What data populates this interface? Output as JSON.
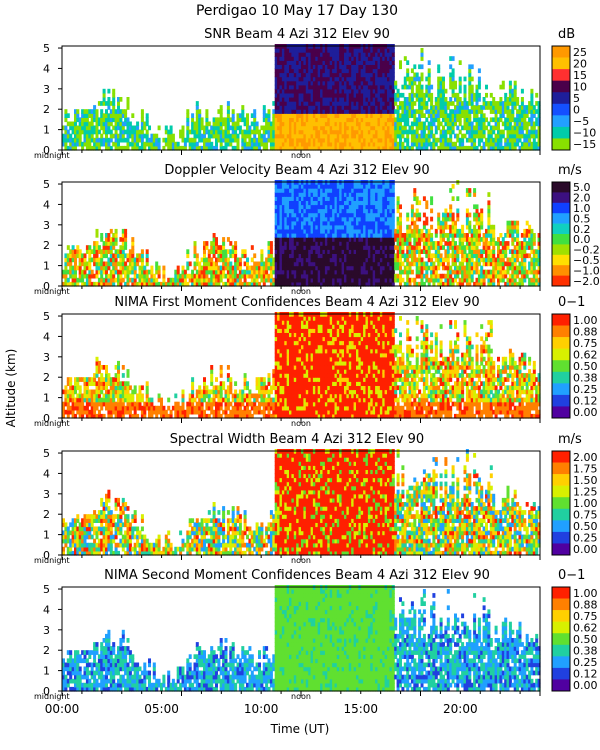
{
  "figure": {
    "title": "Perdigao  10 May 17 Day 130",
    "ylabel": "Altitude (km)",
    "xlabel": "Time (UT)",
    "xticks": [
      "00:00",
      "05:00",
      "10:00",
      "15:00",
      "20:00"
    ],
    "midnight_label": "midnight",
    "noon_label": "noon"
  },
  "chart_data": [
    {
      "type": "heatmap",
      "title": "SNR Beam 4 Azi 312 Elev 90",
      "unit": "dB",
      "yticks": [
        0,
        1,
        2,
        3,
        4,
        5
      ],
      "ylim": [
        0,
        5.1
      ],
      "xlim": [
        0,
        24
      ],
      "colorbar_labels": [
        "25",
        "20",
        "15",
        "10",
        "5",
        "0",
        "−5",
        "−10",
        "−15"
      ],
      "colorbar_colors": [
        "#ff9900",
        "#ffc000",
        "#ff3030",
        "#4a004a",
        "#1e1e9a",
        "#1450ff",
        "#22a0ff",
        "#00ccaa",
        "#88e000"
      ]
    },
    {
      "type": "heatmap",
      "title": "Doppler Velocity Beam 4 Azi 312 Elev 90",
      "unit": "m/s",
      "yticks": [
        0,
        1,
        2,
        3,
        4,
        5
      ],
      "ylim": [
        0,
        5.1
      ],
      "xlim": [
        0,
        24
      ],
      "colorbar_labels": [
        "5.0",
        "2.0",
        "1.0",
        "0.5",
        "0.2",
        "0.0",
        "−0.2",
        "−0.5",
        "−1.0",
        "−2.0"
      ],
      "colorbar_colors": [
        "#2a0a2a",
        "#3c1080",
        "#1040ff",
        "#20a0ff",
        "#10d0c0",
        "#40e040",
        "#a0e000",
        "#ffe000",
        "#ff9000",
        "#ff3000"
      ]
    },
    {
      "type": "heatmap",
      "title": "NIMA First Moment Confidences Beam 4 Azi 312 Elev 90",
      "unit": "0−1",
      "yticks": [
        0,
        1,
        2,
        3,
        4,
        5
      ],
      "ylim": [
        0,
        5.1
      ],
      "xlim": [
        0,
        24
      ],
      "colorbar_labels": [
        "1.00",
        "0.88",
        "0.75",
        "0.62",
        "0.50",
        "0.38",
        "0.25",
        "0.12",
        "0.00"
      ],
      "colorbar_colors": [
        "#ff2000",
        "#ff8000",
        "#ffd000",
        "#d8f000",
        "#60e030",
        "#20d0a0",
        "#20a0ff",
        "#2040e0",
        "#5000a0"
      ]
    },
    {
      "type": "heatmap",
      "title": "Spectral Width Beam 4 Azi 312 Elev 90",
      "unit": "m/s",
      "yticks": [
        0,
        1,
        2,
        3,
        4,
        5
      ],
      "ylim": [
        0,
        5.1
      ],
      "xlim": [
        0,
        24
      ],
      "colorbar_labels": [
        "2.00",
        "1.75",
        "1.50",
        "1.25",
        "1.00",
        "0.75",
        "0.50",
        "0.25",
        "0.00"
      ],
      "colorbar_colors": [
        "#ff2000",
        "#ff8000",
        "#ffd000",
        "#d8f000",
        "#60e030",
        "#20d0a0",
        "#20a0ff",
        "#2040e0",
        "#5000a0"
      ]
    },
    {
      "type": "heatmap",
      "title": "NIMA Second Moment Confidences Beam 4 Azi 312 Elev 90",
      "unit": "0−1",
      "yticks": [
        0,
        1,
        2,
        3,
        4,
        5
      ],
      "ylim": [
        0,
        5.1
      ],
      "xlim": [
        0,
        24
      ],
      "colorbar_labels": [
        "1.00",
        "0.88",
        "0.75",
        "0.62",
        "0.50",
        "0.38",
        "0.25",
        "0.12",
        "0.00"
      ],
      "colorbar_colors": [
        "#ff2000",
        "#ff8000",
        "#ffd000",
        "#d8f000",
        "#60e030",
        "#20d0a0",
        "#20a0ff",
        "#2040e0",
        "#5000a0"
      ]
    }
  ]
}
